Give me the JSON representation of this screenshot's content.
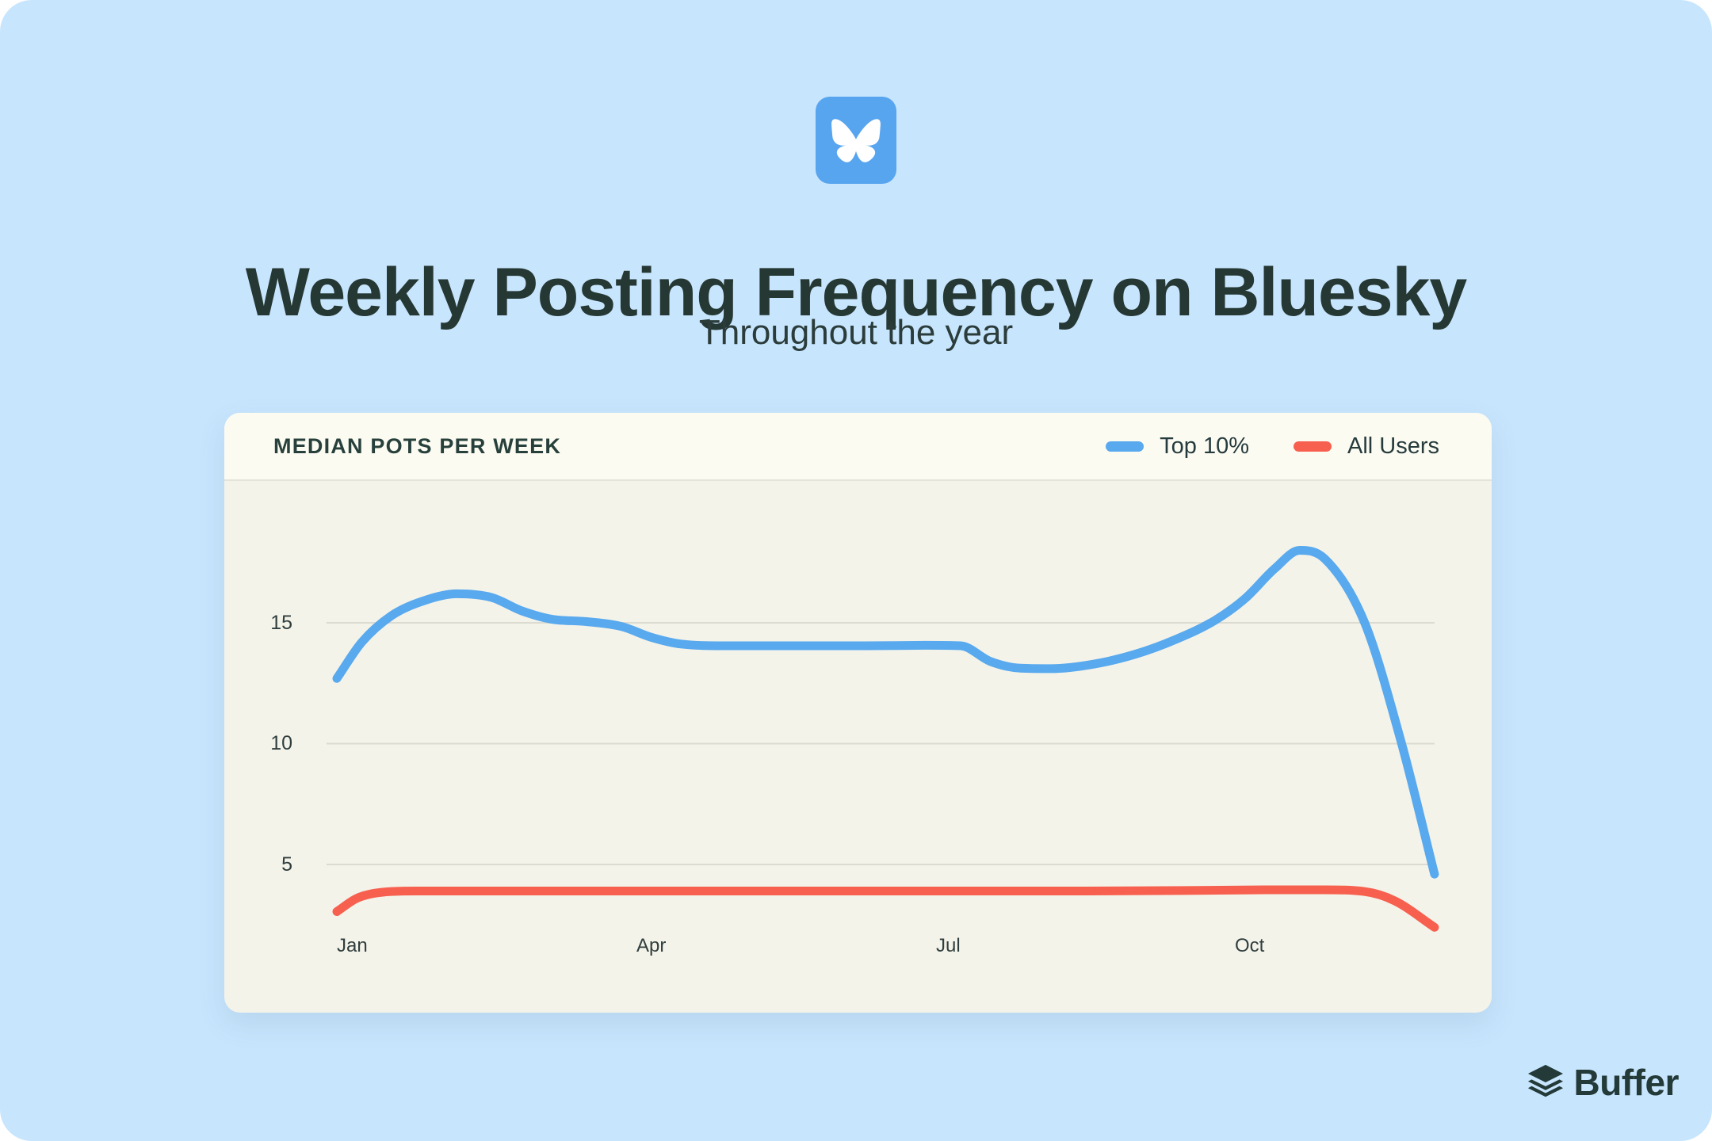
{
  "page": {
    "background_color": "#C7E5FD",
    "text_color": "#263834"
  },
  "header": {
    "logo_icon": "bluesky-butterfly-icon",
    "logo_color": "#57A4EF",
    "title": "Weekly Posting Frequency on Bluesky",
    "subtitle": "Throughout the year"
  },
  "card": {
    "title": "MEDIAN POTS PER WEEK",
    "legend": [
      {
        "label": "Top 10%",
        "color": "#58A9EE"
      },
      {
        "label": "All Users",
        "color": "#F7604F"
      }
    ]
  },
  "chart_data": {
    "type": "line",
    "title": "MEDIAN POTS PER WEEK",
    "x_axis": {
      "unit": "months",
      "tick_labels": [
        "Jan",
        "Apr",
        "Jul",
        "Oct"
      ],
      "tick_positions": [
        0,
        3,
        6,
        9
      ],
      "domain": [
        0,
        11
      ]
    },
    "y_axis": {
      "ticks": [
        5,
        10,
        15
      ],
      "range": [
        0,
        20
      ],
      "gridlines": true,
      "gridline_color": "#DCDBD1"
    },
    "legend_position": "top-right",
    "series": [
      {
        "name": "Top 10%",
        "color": "#58A9EE",
        "points": [
          [
            0,
            12.7
          ],
          [
            0.25,
            14.2
          ],
          [
            0.55,
            15.3
          ],
          [
            0.9,
            15.95
          ],
          [
            1.2,
            16.2
          ],
          [
            1.55,
            16.05
          ],
          [
            1.85,
            15.5
          ],
          [
            2.15,
            15.15
          ],
          [
            2.5,
            15.05
          ],
          [
            2.85,
            14.85
          ],
          [
            3.15,
            14.4
          ],
          [
            3.45,
            14.12
          ],
          [
            3.9,
            14.05
          ],
          [
            4.6,
            14.05
          ],
          [
            5.3,
            14.05
          ],
          [
            5.9,
            14.07
          ],
          [
            6.25,
            14.05
          ],
          [
            6.55,
            13.4
          ],
          [
            6.85,
            13.12
          ],
          [
            7.15,
            13.1
          ],
          [
            7.6,
            13.3
          ],
          [
            8,
            13.7
          ],
          [
            8.4,
            14.3
          ],
          [
            8.8,
            15.1
          ],
          [
            9.1,
            16
          ],
          [
            9.4,
            17.25
          ],
          [
            9.65,
            18
          ],
          [
            9.9,
            17.65
          ],
          [
            10.3,
            15
          ],
          [
            10.67,
            10
          ],
          [
            11,
            4.6
          ]
        ]
      },
      {
        "name": "All Users",
        "color": "#F7604F",
        "points": [
          [
            0,
            3.05
          ],
          [
            0.2,
            3.6
          ],
          [
            0.45,
            3.85
          ],
          [
            0.8,
            3.9
          ],
          [
            1.5,
            3.9
          ],
          [
            2.5,
            3.9
          ],
          [
            3.5,
            3.9
          ],
          [
            4.5,
            3.9
          ],
          [
            5.5,
            3.9
          ],
          [
            6.5,
            3.9
          ],
          [
            7.5,
            3.9
          ],
          [
            8.5,
            3.92
          ],
          [
            9.3,
            3.95
          ],
          [
            9.9,
            3.95
          ],
          [
            10.3,
            3.88
          ],
          [
            10.6,
            3.5
          ],
          [
            11,
            2.4
          ]
        ]
      }
    ]
  },
  "footer": {
    "brand": "Buffer",
    "brand_color": "#233A38"
  }
}
